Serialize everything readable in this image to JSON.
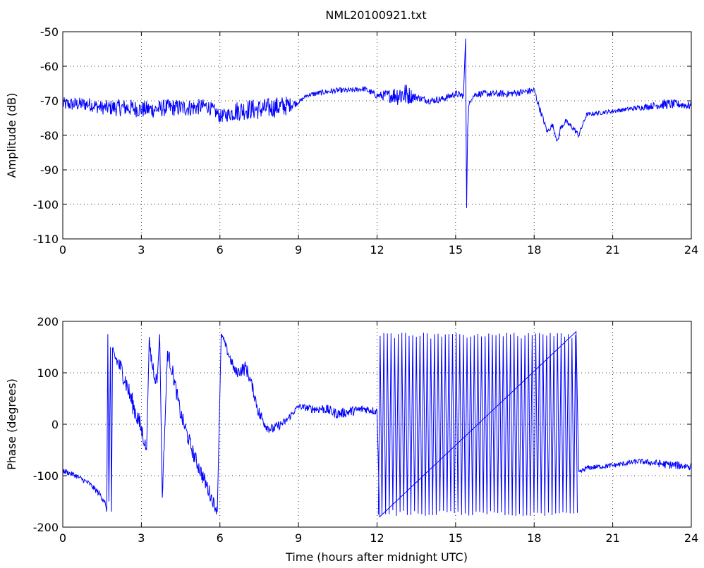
{
  "figure_title": "NML20100921.txt",
  "chart_data": [
    {
      "type": "line",
      "title": "NML20100921.txt",
      "xlabel": "",
      "ylabel": "Amplitude (dB)",
      "xlim": [
        0,
        24
      ],
      "ylim": [
        -110,
        -50
      ],
      "xticks": [
        "0",
        "3",
        "6",
        "9",
        "12",
        "15",
        "18",
        "21",
        "24"
      ],
      "yticks": [
        "-110",
        "-100",
        "-90",
        "-80",
        "-70",
        "-60",
        "-50"
      ],
      "grid": true,
      "line_color": "#0000ff",
      "series": [
        {
          "x": [
            0,
            0.5,
            1.0,
            1.5,
            2.0,
            2.5,
            3.0,
            3.5,
            4.0,
            4.5,
            5.0,
            5.5,
            5.8,
            6.0,
            6.3,
            6.6,
            7.0,
            7.5,
            8.0,
            8.5,
            9.0,
            9.3,
            9.6,
            10.0,
            10.5,
            11.0,
            11.5,
            12.0,
            12.5,
            13.0,
            13.5,
            14.0,
            14.5,
            15.0,
            15.3,
            15.38,
            15.42,
            15.46,
            15.5,
            15.6,
            15.8,
            16.0,
            16.5,
            17.0,
            17.5,
            18.0,
            18.2,
            18.5,
            18.7,
            18.9,
            19.0,
            19.2,
            19.5,
            19.7,
            20.0,
            20.5,
            21.0,
            21.5,
            22.0,
            22.5,
            23.0,
            23.5,
            24.0
          ],
          "y": [
            -71,
            -71,
            -71,
            -72,
            -72,
            -72,
            -72.5,
            -72.5,
            -72,
            -72,
            -72,
            -71.5,
            -73,
            -74.5,
            -74,
            -73,
            -72.5,
            -72.5,
            -72,
            -71.5,
            -70.5,
            -68.5,
            -68,
            -67.5,
            -67,
            -67,
            -66.5,
            -68.5,
            -68.5,
            -68,
            -69,
            -70,
            -69.5,
            -68,
            -68.5,
            -52,
            -101,
            -78,
            -72,
            -69,
            -68,
            -68,
            -68,
            -68,
            -67.5,
            -67,
            -72,
            -79,
            -77,
            -82,
            -78,
            -76,
            -78,
            -80,
            -74,
            -73.5,
            -73,
            -72.5,
            -72,
            -71.5,
            -71,
            -71,
            -71.5
          ],
          "noise": [
            2,
            2,
            2,
            2,
            2.5,
            2.5,
            2.5,
            2.5,
            2.5,
            2.5,
            2.5,
            2,
            2,
            2,
            2,
            3,
            3,
            3,
            3,
            3,
            0.5,
            0.5,
            0.8,
            0.8,
            0.8,
            0.8,
            0.8,
            1,
            2,
            4,
            1,
            1,
            1,
            1,
            1,
            0,
            0,
            0,
            1,
            1,
            1,
            1,
            1,
            1,
            1,
            1,
            1,
            0.8,
            0.8,
            0.8,
            0.8,
            0.8,
            0.8,
            0.8,
            0.6,
            0.6,
            0.6,
            0.6,
            0.8,
            1,
            1.5,
            1.2,
            1.2
          ]
        }
      ]
    },
    {
      "type": "line",
      "title": "",
      "xlabel": "Time (hours after midnight UTC)",
      "ylabel": "Phase (degrees)",
      "xlim": [
        0,
        24
      ],
      "ylim": [
        -200,
        200
      ],
      "xticks": [
        "0",
        "3",
        "6",
        "9",
        "12",
        "15",
        "18",
        "21",
        "24"
      ],
      "yticks": [
        "-200",
        "-100",
        "0",
        "100",
        "200"
      ],
      "grid": true,
      "line_color": "#0000ff",
      "series": [
        {
          "x": [
            0,
            0.5,
            1.0,
            1.4,
            1.6,
            1.68,
            1.72,
            1.76,
            1.82,
            1.86,
            1.9,
            2.0,
            2.3,
            2.6,
            2.8,
            3.0,
            3.2,
            3.3,
            3.4,
            3.6,
            3.7,
            3.8,
            4.0,
            4.2,
            4.5,
            5.0,
            5.5,
            5.9,
            6.05,
            6.1,
            6.3,
            6.6,
            7.0,
            7.2,
            7.5,
            7.8,
            8.0,
            8.5,
            9.0,
            9.5,
            10.0,
            10.5,
            11.0,
            11.5,
            12.0,
            12.1,
            19.6,
            19.7,
            20.0,
            21.0,
            22.0,
            23.0,
            24.0
          ],
          "y": [
            -90,
            -100,
            -115,
            -135,
            -150,
            -170,
            175,
            -150,
            150,
            -170,
            140,
            130,
            100,
            50,
            20,
            -10,
            -50,
            160,
            120,
            80,
            175,
            -140,
            140,
            100,
            20,
            -60,
            -120,
            -170,
            175,
            170,
            140,
            100,
            110,
            80,
            20,
            -5,
            -10,
            5,
            35,
            30,
            30,
            20,
            25,
            30,
            25,
            -180,
            180,
            -95,
            -85,
            -80,
            -72,
            -78,
            -82
          ],
          "noise": [
            5,
            5,
            5,
            6,
            6,
            0,
            0,
            0,
            8,
            0,
            10,
            15,
            20,
            20,
            20,
            20,
            10,
            10,
            20,
            15,
            10,
            10,
            15,
            15,
            15,
            15,
            15,
            10,
            0,
            5,
            10,
            10,
            15,
            10,
            15,
            10,
            10,
            8,
            5,
            8,
            10,
            10,
            10,
            8,
            8,
            0,
            0,
            5,
            5,
            5,
            5,
            8,
            8
          ]
        }
      ],
      "wrap_band": {
        "x_start": 12.05,
        "x_end": 19.65,
        "y_min": -178,
        "y_max": 178,
        "cycles": 110
      }
    }
  ]
}
